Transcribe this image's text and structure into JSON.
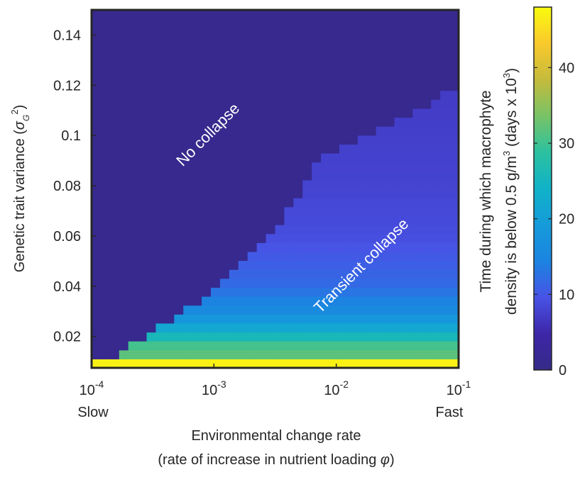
{
  "chart_data": {
    "type": "heatmap",
    "x_axis": {
      "label_line1": "Environmental change rate",
      "label_line2_prefix": "(rate of increase in nutrient loading ",
      "label_line2_symbol": "φ",
      "label_line2_suffix": ")",
      "scale": "log",
      "range": [
        0.0001,
        0.1
      ],
      "ticks": [
        {
          "value": 0.0001,
          "base": "10",
          "exp": "-4"
        },
        {
          "value": 0.001,
          "base": "10",
          "exp": "-3"
        },
        {
          "value": 0.01,
          "base": "10",
          "exp": "-2"
        },
        {
          "value": 0.1,
          "base": "10",
          "exp": "-1"
        }
      ],
      "end_labels": {
        "left": "Slow",
        "right": "Fast"
      }
    },
    "y_axis": {
      "label_prefix": "Genetic trait variance (",
      "label_symbol": "σ",
      "label_sub": "G",
      "label_sup": "2",
      "label_suffix": ")",
      "range": [
        0.0075,
        0.15
      ],
      "ticks": [
        "0.02",
        "0.04",
        "0.06",
        "0.08",
        "0.1",
        "0.12",
        "0.14"
      ]
    },
    "colorbar": {
      "range": [
        0,
        48
      ],
      "ticks": [
        "0",
        "10",
        "20",
        "30",
        "40"
      ],
      "label_line1": "Time during which macrophyte",
      "label_line2_prefix": "density is below 0.5 g/m",
      "label_line2_sup1": "3",
      "label_line2_mid": " (days x 10",
      "label_line2_sup2": "3",
      "label_line2_suffix": ")",
      "colormap": "parula"
    },
    "annotations": [
      "No collapse",
      "Transient collapse"
    ],
    "grid": {
      "nx": 40,
      "ny": 40,
      "log10_x_range": [
        -4,
        -1
      ],
      "y_range": [
        0.0075,
        0.15
      ]
    },
    "boundary_curve": [
      {
        "log10_x": -3.8,
        "y": 0.011
      },
      {
        "log10_x": -3.6,
        "y": 0.019
      },
      {
        "log10_x": -3.3,
        "y": 0.028
      },
      {
        "log10_x": -3.0,
        "y": 0.039
      },
      {
        "log10_x": -2.7,
        "y": 0.052
      },
      {
        "log10_x": -2.45,
        "y": 0.065
      },
      {
        "log10_x": -2.3,
        "y": 0.077
      },
      {
        "log10_x": -2.2,
        "y": 0.088
      },
      {
        "log10_x": -1.9,
        "y": 0.097
      },
      {
        "log10_x": -1.6,
        "y": 0.103
      },
      {
        "log10_x": -1.35,
        "y": 0.11
      },
      {
        "log10_x": -1.1,
        "y": 0.117
      },
      {
        "log10_x": -1.0,
        "y": 0.118
      }
    ],
    "collapse_time_by_variance": [
      {
        "y": 0.0075,
        "value": 47
      },
      {
        "y": 0.011,
        "value": 47
      },
      {
        "y": 0.0125,
        "value": 32
      },
      {
        "y": 0.017,
        "value": 30
      },
      {
        "y": 0.0205,
        "value": 25
      },
      {
        "y": 0.025,
        "value": 20
      },
      {
        "y": 0.03,
        "value": 16
      },
      {
        "y": 0.04,
        "value": 12
      },
      {
        "y": 0.06,
        "value": 9
      },
      {
        "y": 0.08,
        "value": 8
      },
      {
        "y": 0.12,
        "value": 7
      }
    ],
    "no_collapse_value": 1
  }
}
